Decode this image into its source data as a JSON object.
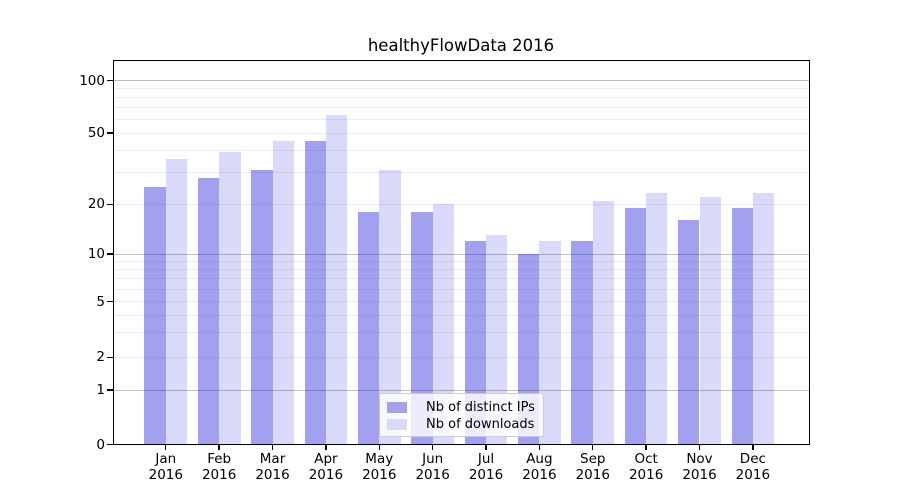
{
  "figure": {
    "title": "healthyFlowData 2016"
  },
  "chart_data": {
    "type": "bar",
    "title": "healthyFlowData 2016",
    "categories": [
      "Jan 2016",
      "Feb 2016",
      "Mar 2016",
      "Apr 2016",
      "May 2016",
      "Jun 2016",
      "Jul 2016",
      "Aug 2016",
      "Sep 2016",
      "Oct 2016",
      "Nov 2016",
      "Dec 2016"
    ],
    "months": [
      "Jan",
      "Feb",
      "Mar",
      "Apr",
      "May",
      "Jun",
      "Jul",
      "Aug",
      "Sep",
      "Oct",
      "Nov",
      "Dec"
    ],
    "year": "2016",
    "series": [
      {
        "name": "Nb of distinct IPs",
        "color": "rgba(30,30,220,0.42)",
        "legend_color": "#a2a2f0",
        "values": [
          25,
          28,
          31,
          45,
          18,
          18,
          12,
          10,
          12,
          19,
          16,
          19
        ]
      },
      {
        "name": "Nb of downloads",
        "color": "rgba(30,30,220,0.17)",
        "legend_color": "#d9d9f8",
        "values": [
          36,
          39,
          45,
          63,
          31,
          20,
          13,
          12,
          21,
          23,
          22,
          23
        ]
      }
    ],
    "y_axis": {
      "scale": "symlog",
      "tick_labels": [
        "100",
        "50",
        "20",
        "10",
        "5",
        "2",
        "1",
        "0"
      ],
      "ylim": [
        0,
        130
      ],
      "grid": true
    },
    "legend": {
      "position": "lower center"
    }
  }
}
